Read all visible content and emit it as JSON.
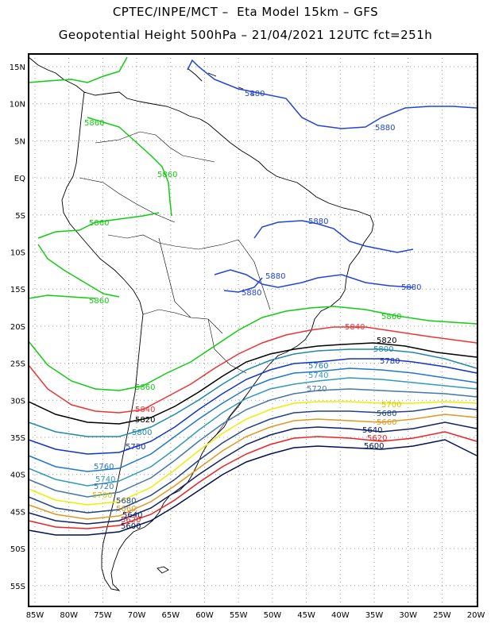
{
  "header": {
    "line1": "CPTEC/INPE/MCT –  Eta Model 15km – GFS",
    "line2": "Geopotential Height 500hPa – 21/04/2021 12UTC fct=251h"
  },
  "axes": {
    "lat_labels": [
      "15N",
      "10N",
      "5N",
      "EQ",
      "5S",
      "10S",
      "15S",
      "20S",
      "25S",
      "30S",
      "35S",
      "40S",
      "45S",
      "50S",
      "55S"
    ],
    "lon_labels": [
      "85W",
      "80W",
      "75W",
      "70W",
      "65W",
      "60W",
      "55W",
      "50W",
      "45W",
      "40W",
      "35W",
      "30W",
      "25W",
      "20W"
    ],
    "lat_range": [
      17.5,
      -58
    ],
    "lon_range": [
      -86,
      -20
    ],
    "grid": true
  },
  "contours": [
    {
      "value": "5880",
      "color": "#2244dd"
    },
    {
      "value": "5860",
      "color": "#11cc11"
    },
    {
      "value": "5840",
      "color": "#ee3333"
    },
    {
      "value": "5820",
      "color": "#000000"
    },
    {
      "value": "5800",
      "color": "#2288aa"
    },
    {
      "value": "5780",
      "color": "#1133cc"
    },
    {
      "value": "5760",
      "color": "#2277cc"
    },
    {
      "value": "5740",
      "color": "#3399bb"
    },
    {
      "value": "5720",
      "color": "#4477aa"
    },
    {
      "value": "5700",
      "color": "#eeee00"
    },
    {
      "value": "5680",
      "color": "#224488"
    },
    {
      "value": "5660",
      "color": "#dd9922"
    },
    {
      "value": "5640",
      "color": "#112266"
    },
    {
      "value": "5620",
      "color": "#ee2222"
    },
    {
      "value": "5600",
      "color": "#001155"
    }
  ]
}
